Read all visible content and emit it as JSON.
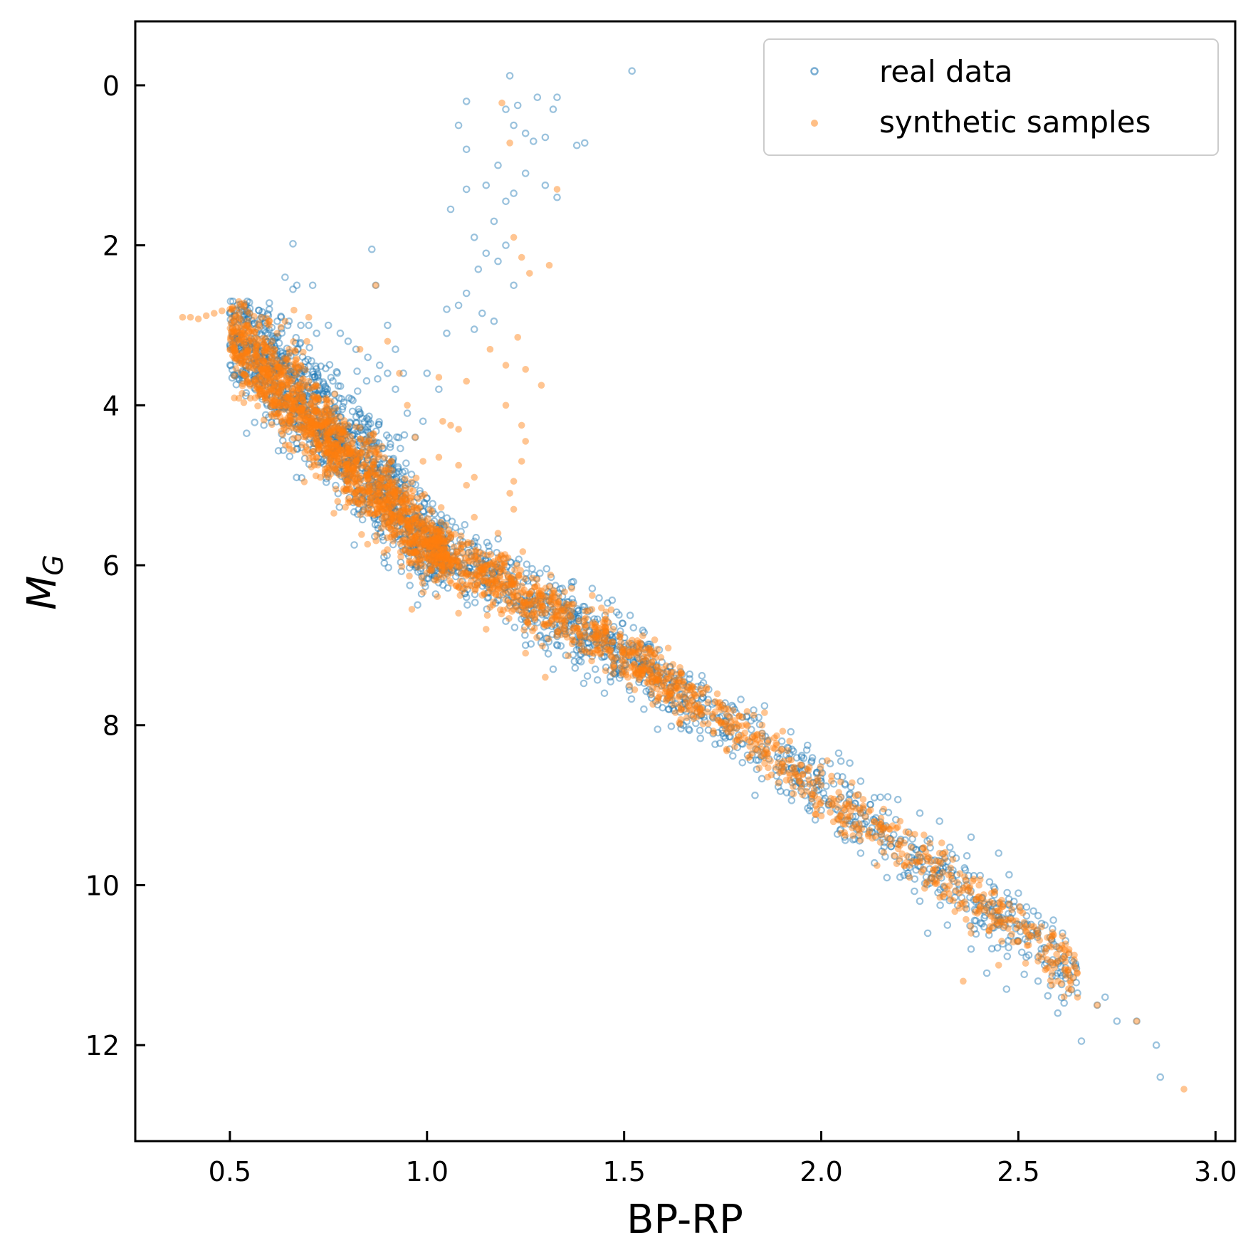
{
  "chart_data": {
    "type": "scatter",
    "xlabel": "BP-RP",
    "ylabel": "M",
    "ylabel_subscript": "G",
    "xlim": [
      0.26,
      3.05
    ],
    "ylim": [
      13.2,
      -0.8
    ],
    "y_inverted": true,
    "grid": false,
    "legend_position": "top-right",
    "x_ticks": [
      "0.5",
      "1.0",
      "1.5",
      "2.0",
      "2.5",
      "3.0"
    ],
    "y_ticks": [
      "0",
      "2",
      "4",
      "6",
      "8",
      "10",
      "12"
    ],
    "x_tick_values": [
      0.5,
      1.0,
      1.5,
      2.0,
      2.5,
      3.0
    ],
    "y_tick_values": [
      0,
      2,
      4,
      6,
      8,
      10,
      12
    ],
    "series": [
      {
        "name": "real data",
        "color": "#1f77b4",
        "marker": "hollow-circle",
        "alpha": 0.45,
        "points": [
          [
            0.5,
            2.85
          ],
          [
            0.53,
            2.8
          ],
          [
            0.55,
            2.85
          ],
          [
            0.58,
            2.9
          ],
          [
            0.6,
            2.8
          ],
          [
            0.62,
            2.95
          ],
          [
            0.63,
            2.9
          ],
          [
            0.65,
            2.95
          ],
          [
            0.68,
            3.0
          ],
          [
            0.7,
            3.0
          ],
          [
            0.72,
            3.1
          ],
          [
            0.75,
            3.0
          ],
          [
            0.78,
            3.1
          ],
          [
            0.8,
            3.2
          ],
          [
            0.82,
            3.3
          ],
          [
            0.85,
            3.4
          ],
          [
            0.88,
            3.5
          ],
          [
            0.9,
            3.6
          ],
          [
            0.92,
            3.8
          ],
          [
            0.95,
            4.1
          ],
          [
            0.97,
            4.4
          ],
          [
            0.64,
            2.4
          ],
          [
            0.66,
            2.55
          ],
          [
            0.67,
            2.5
          ],
          [
            0.66,
            1.98
          ],
          [
            0.71,
            2.5
          ],
          [
            0.86,
            2.05
          ],
          [
            0.87,
            2.5
          ],
          [
            0.55,
            3.2
          ],
          [
            0.6,
            3.4
          ],
          [
            0.65,
            3.6
          ],
          [
            0.7,
            3.9
          ],
          [
            0.75,
            4.2
          ],
          [
            0.8,
            4.5
          ],
          [
            0.85,
            4.8
          ],
          [
            0.9,
            5.1
          ],
          [
            0.95,
            5.4
          ],
          [
            1.0,
            5.7
          ],
          [
            1.05,
            5.9
          ],
          [
            1.1,
            6.1
          ],
          [
            1.15,
            6.2
          ],
          [
            1.2,
            6.35
          ],
          [
            1.25,
            6.5
          ],
          [
            1.3,
            6.6
          ],
          [
            1.35,
            6.7
          ],
          [
            1.4,
            6.9
          ],
          [
            1.45,
            7.0
          ],
          [
            1.5,
            7.1
          ],
          [
            1.55,
            7.2
          ],
          [
            1.6,
            7.35
          ],
          [
            1.65,
            7.5
          ],
          [
            1.7,
            7.6
          ],
          [
            1.75,
            7.75
          ],
          [
            1.8,
            7.9
          ],
          [
            1.85,
            8.1
          ],
          [
            1.9,
            8.3
          ],
          [
            1.95,
            8.5
          ],
          [
            2.0,
            8.7
          ],
          [
            2.05,
            8.9
          ],
          [
            2.1,
            9.1
          ],
          [
            2.15,
            9.25
          ],
          [
            2.2,
            9.45
          ],
          [
            2.25,
            9.65
          ],
          [
            2.3,
            9.85
          ],
          [
            2.35,
            10.05
          ],
          [
            2.4,
            10.25
          ],
          [
            2.45,
            10.5
          ],
          [
            2.5,
            10.7
          ],
          [
            2.55,
            10.9
          ],
          [
            2.6,
            11.1
          ],
          [
            2.65,
            11.35
          ],
          [
            2.7,
            11.5
          ],
          [
            2.75,
            11.7
          ],
          [
            2.8,
            11.7
          ],
          [
            2.85,
            12.0
          ],
          [
            2.86,
            12.4
          ],
          [
            1.1,
            0.2
          ],
          [
            1.08,
            0.5
          ],
          [
            1.1,
            0.8
          ],
          [
            1.1,
            1.3
          ],
          [
            1.06,
            1.55
          ],
          [
            1.12,
            1.9
          ],
          [
            1.15,
            2.1
          ],
          [
            1.18,
            2.2
          ],
          [
            1.13,
            2.3
          ],
          [
            1.1,
            2.6
          ],
          [
            1.08,
            2.75
          ],
          [
            1.12,
            3.05
          ],
          [
            1.05,
            3.1
          ],
          [
            1.0,
            3.6
          ],
          [
            1.03,
            3.8
          ],
          [
            1.05,
            2.8
          ],
          [
            1.2,
            0.3
          ],
          [
            1.22,
            0.5
          ],
          [
            1.25,
            0.6
          ],
          [
            1.27,
            0.7
          ],
          [
            1.3,
            0.65
          ],
          [
            1.33,
            0.15
          ],
          [
            1.32,
            0.3
          ],
          [
            1.28,
            0.15
          ],
          [
            1.23,
            0.25
          ],
          [
            1.21,
            -0.12
          ],
          [
            1.52,
            -0.18
          ],
          [
            1.38,
            0.75
          ],
          [
            1.4,
            0.72
          ],
          [
            1.33,
            1.4
          ],
          [
            1.3,
            1.25
          ],
          [
            1.18,
            1.0
          ],
          [
            1.2,
            1.45
          ],
          [
            1.22,
            1.35
          ],
          [
            1.25,
            1.1
          ],
          [
            1.15,
            1.25
          ],
          [
            1.17,
            1.7
          ],
          [
            1.2,
            2.0
          ],
          [
            1.22,
            2.5
          ],
          [
            1.14,
            2.85
          ],
          [
            1.17,
            2.95
          ],
          [
            0.9,
            3.0
          ],
          [
            0.92,
            3.3
          ],
          [
            0.94,
            3.6
          ],
          [
            0.99,
            4.2
          ],
          [
            0.84,
            5.3
          ],
          [
            0.8,
            4.9
          ],
          [
            0.75,
            4.6
          ],
          [
            1.05,
            6.1
          ],
          [
            1.1,
            6.4
          ],
          [
            1.2,
            6.7
          ],
          [
            1.25,
            7.0
          ],
          [
            1.32,
            7.3
          ],
          [
            1.45,
            7.6
          ],
          [
            1.55,
            7.8
          ],
          [
            1.65,
            8.0
          ],
          [
            1.75,
            8.1
          ],
          [
            1.9,
            8.2
          ],
          [
            1.95,
            8.4
          ],
          [
            2.05,
            8.45
          ],
          [
            2.1,
            8.7
          ],
          [
            2.15,
            8.9
          ],
          [
            2.25,
            9.1
          ],
          [
            2.3,
            9.2
          ],
          [
            2.38,
            9.4
          ],
          [
            2.45,
            9.6
          ],
          [
            2.5,
            10.1
          ],
          [
            2.45,
            10.4
          ],
          [
            2.52,
            10.9
          ],
          [
            2.55,
            11.2
          ],
          [
            2.6,
            11.6
          ],
          [
            2.66,
            11.95
          ],
          [
            2.72,
            11.4
          ],
          [
            2.05,
            9.3
          ],
          [
            2.1,
            9.6
          ],
          [
            2.2,
            9.9
          ],
          [
            2.25,
            10.2
          ],
          [
            2.32,
            10.5
          ],
          [
            2.38,
            10.8
          ],
          [
            2.42,
            11.1
          ],
          [
            2.47,
            11.3
          ],
          [
            2.27,
            10.6
          ]
        ]
      },
      {
        "name": "synthetic samples",
        "color": "#ff7f0e",
        "marker": "filled-circle",
        "alpha": 0.45,
        "points": [
          [
            0.38,
            2.9
          ],
          [
            0.4,
            2.9
          ],
          [
            0.42,
            2.92
          ],
          [
            0.44,
            2.88
          ],
          [
            0.46,
            2.85
          ],
          [
            0.48,
            2.82
          ],
          [
            0.5,
            2.8
          ],
          [
            0.52,
            2.78
          ],
          [
            0.55,
            2.85
          ],
          [
            0.58,
            2.9
          ],
          [
            0.6,
            3.0
          ],
          [
            0.62,
            3.1
          ],
          [
            0.65,
            3.3
          ],
          [
            0.68,
            3.5
          ],
          [
            0.7,
            3.7
          ],
          [
            0.72,
            3.9
          ],
          [
            0.75,
            4.1
          ],
          [
            0.78,
            4.3
          ],
          [
            0.8,
            4.5
          ],
          [
            0.82,
            4.7
          ],
          [
            0.85,
            4.9
          ],
          [
            0.88,
            5.1
          ],
          [
            0.9,
            5.25
          ],
          [
            0.93,
            5.4
          ],
          [
            0.96,
            5.55
          ],
          [
            1.0,
            5.7
          ],
          [
            1.03,
            5.85
          ],
          [
            1.06,
            6.0
          ],
          [
            1.1,
            6.1
          ],
          [
            1.14,
            6.2
          ],
          [
            1.18,
            6.3
          ],
          [
            1.22,
            6.4
          ],
          [
            1.26,
            6.5
          ],
          [
            1.3,
            6.6
          ],
          [
            1.35,
            6.75
          ],
          [
            1.4,
            6.85
          ],
          [
            1.45,
            6.95
          ],
          [
            1.5,
            7.05
          ],
          [
            1.55,
            7.15
          ],
          [
            1.6,
            7.3
          ],
          [
            1.65,
            7.45
          ],
          [
            1.7,
            7.6
          ],
          [
            1.75,
            7.75
          ],
          [
            1.8,
            7.9
          ],
          [
            1.85,
            8.1
          ],
          [
            1.9,
            8.3
          ],
          [
            1.95,
            8.5
          ],
          [
            2.0,
            8.75
          ],
          [
            2.05,
            8.9
          ],
          [
            2.1,
            9.1
          ],
          [
            2.15,
            9.3
          ],
          [
            2.2,
            9.5
          ],
          [
            2.25,
            9.7
          ],
          [
            2.3,
            9.9
          ],
          [
            2.35,
            10.1
          ],
          [
            2.4,
            10.3
          ],
          [
            2.45,
            10.5
          ],
          [
            2.5,
            10.7
          ],
          [
            2.55,
            10.95
          ],
          [
            2.6,
            11.2
          ],
          [
            2.65,
            11.4
          ],
          [
            2.7,
            11.5
          ],
          [
            2.8,
            11.7
          ],
          [
            2.92,
            12.55
          ],
          [
            1.19,
            0.22
          ],
          [
            1.21,
            0.72
          ],
          [
            1.33,
            1.3
          ],
          [
            1.22,
            1.9
          ],
          [
            1.24,
            2.15
          ],
          [
            1.26,
            2.35
          ],
          [
            1.31,
            2.25
          ],
          [
            1.23,
            3.15
          ],
          [
            1.29,
            3.75
          ],
          [
            1.25,
            3.55
          ],
          [
            1.2,
            3.5
          ],
          [
            1.16,
            3.3
          ],
          [
            1.1,
            3.7
          ],
          [
            1.03,
            3.65
          ],
          [
            1.04,
            4.2
          ],
          [
            1.06,
            4.25
          ],
          [
            1.08,
            4.3
          ],
          [
            1.2,
            4.0
          ],
          [
            1.24,
            4.25
          ],
          [
            1.25,
            4.45
          ],
          [
            1.24,
            4.7
          ],
          [
            1.22,
            4.95
          ],
          [
            1.21,
            5.1
          ],
          [
            1.12,
            4.9
          ],
          [
            1.1,
            5.0
          ],
          [
            1.08,
            4.75
          ],
          [
            1.03,
            4.65
          ],
          [
            1.12,
            5.4
          ],
          [
            1.18,
            5.6
          ],
          [
            1.22,
            5.3
          ],
          [
            0.87,
            2.5
          ],
          [
            0.7,
            2.9
          ],
          [
            0.64,
            2.95
          ],
          [
            0.9,
            3.2
          ],
          [
            0.83,
            3.3
          ],
          [
            0.93,
            3.6
          ],
          [
            0.95,
            4.0
          ],
          [
            0.97,
            4.4
          ],
          [
            0.99,
            4.7
          ],
          [
            1.08,
            6.6
          ],
          [
            1.15,
            6.8
          ],
          [
            1.25,
            7.1
          ],
          [
            1.3,
            7.4
          ],
          [
            2.2,
            9.2
          ],
          [
            2.3,
            9.6
          ],
          [
            2.4,
            10.0
          ],
          [
            2.38,
            10.6
          ],
          [
            2.45,
            11.0
          ],
          [
            2.36,
            11.2
          ],
          [
            2.55,
            10.6
          ],
          [
            2.05,
            9.35
          ],
          [
            1.85,
            8.0
          ],
          [
            1.92,
            8.2
          ],
          [
            1.76,
            8.3
          ]
        ]
      }
    ]
  }
}
